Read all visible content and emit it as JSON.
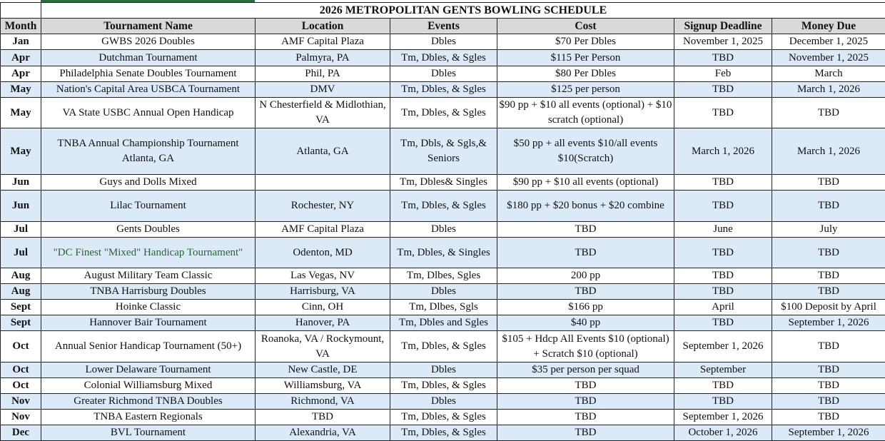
{
  "title": "2026 METROPOLITAN GENTS BOWLING SCHEDULE",
  "colors": {
    "row_alt": "#dce9f7",
    "header_bg": "#d9d9d9",
    "highlight_text": "#1f6b2a"
  },
  "columns": [
    "Month",
    "Tournament Name",
    "Location",
    "Events",
    "Cost",
    "Signup Deadline",
    "Money Due"
  ],
  "rows": [
    {
      "month": "Jan",
      "name": "GWBS 2026 Doubles",
      "location": "AMF Capital Plaza",
      "events": "Dbles",
      "cost": "$70 Per Dbles",
      "signup": "November 1, 2025",
      "due": "December 1, 2025"
    },
    {
      "month": "Apr",
      "name": "Dutchman Tournament",
      "location": "Palmyra, PA",
      "events": "Tm, Dbles, & Sgles",
      "cost": "$115 Per Person",
      "signup": "TBD",
      "due": "November 1, 2025"
    },
    {
      "month": "Apr",
      "name": "Philadelphia Senate Doubles Tournament",
      "location": "Phil, PA",
      "events": "Dbles",
      "cost": "$80 Per Dbles",
      "signup": "Feb",
      "due": "March"
    },
    {
      "month": "May",
      "name": "Nation's Capital Area USBCA Tournament",
      "location": "DMV",
      "events": "Tm, Dbles, & Sgles",
      "cost": "$125 per person",
      "signup": "TBD",
      "due": "March 1, 2026"
    },
    {
      "month": "May",
      "name": "VA State USBC Annual Open Handicap",
      "location": "N Chesterfield & Midlothian, VA",
      "events": "Tm, Dbles, & Sgles",
      "cost": "$90 pp + $10 all events (optional) + $10 scratch (optional)",
      "signup": "TBD",
      "due": "TBD"
    },
    {
      "month": "May",
      "name": "TNBA Annual Championship Tournament Atlanta, GA",
      "location": "Atlanta, GA",
      "events": "Tm, Dbls, & Sgls,& Seniors",
      "cost": "$50 pp + all events $10/all events $10(Scratch)",
      "signup": "March 1, 2026",
      "due": "March 1, 2026"
    },
    {
      "month": "Jun",
      "name": "Guys and Dolls Mixed",
      "location": "",
      "events": "Tm, Dbles& Singles",
      "cost": "$90 pp + $10 all events (optional)",
      "signup": "TBD",
      "due": "TBD"
    },
    {
      "month": "Jun",
      "name": "Lilac Tournament",
      "location": "Rochester, NY",
      "events": "Tm, Dbles, & Sgles",
      "cost": "$180 pp + $20 bonus + $20 combine",
      "signup": "TBD",
      "due": "TBD"
    },
    {
      "month": "Jul",
      "name": "Gents Doubles",
      "location": "AMF Capital Plaza",
      "events": "Dbles",
      "cost": "TBD",
      "signup": "June",
      "due": "July"
    },
    {
      "month": "Jul",
      "name": "\"DC Finest \"Mixed\" Handicap Tournament\"",
      "location": "Odenton, MD",
      "events": "Tm, Dbles, & Singles",
      "cost": "TBD",
      "signup": "TBD",
      "due": "TBD"
    },
    {
      "month": "Aug",
      "name": "August Military Team Classic",
      "location": "Las Vegas, NV",
      "events": "Tm, Dlbes, Sgles",
      "cost": "200 pp",
      "signup": "TBD",
      "due": "TBD"
    },
    {
      "month": "Aug",
      "name": "TNBA Harrisburg Doubles",
      "location": "Harrisburg, VA",
      "events": "Dbles",
      "cost": "TBD",
      "signup": "TBD",
      "due": "TBD"
    },
    {
      "month": "Sept",
      "name": "Hoinke Classic",
      "location": "Cinn, OH",
      "events": "Tm, Dlbes, Sgls",
      "cost": "$166 pp",
      "signup": "April",
      "due": "$100 Deposit by April"
    },
    {
      "month": "Sept",
      "name": "Hannover Bair Tournament",
      "location": "Hanover, PA",
      "events": "Tm, Dbles and Sgles",
      "cost": "$40 pp",
      "signup": "TBD",
      "due": "September 1, 2026"
    },
    {
      "month": "Oct",
      "name": "Annual Senior Handicap Tournament (50+)",
      "location": "Roanoka, VA / Rockymount, VA",
      "events": "Tm, Dbles, & Sgles",
      "cost": "$105 + Hdcp All Events $10 (optional) + Scratch $10 (optional)",
      "signup": "September 1, 2026",
      "due": "TBD"
    },
    {
      "month": "Oct",
      "name": "Lower Delaware Tournament",
      "location": "New Castle, DE",
      "events": "Dbles",
      "cost": "$35 per person per squad",
      "signup": "September",
      "due": "TBD"
    },
    {
      "month": "Oct",
      "name": "Colonial Williamsburg Mixed",
      "location": "Williamsburg, VA",
      "events": "Tm, Dbles, & Sgles",
      "cost": "TBD",
      "signup": "TBD",
      "due": "TBD"
    },
    {
      "month": "Nov",
      "name": "Greater Richmond TNBA Doubles",
      "location": "Richmond, VA",
      "events": "Dbles",
      "cost": "TBD",
      "signup": "TBD",
      "due": "TBD"
    },
    {
      "month": "Nov",
      "name": "TNBA Eastern Regionals",
      "location": "TBD",
      "events": "Tm, Dbles, & Sgles",
      "cost": "TBD",
      "signup": "September 1, 2026",
      "due": "TBD"
    },
    {
      "month": "Dec",
      "name": "BVL Tournament",
      "location": "Alexandria, VA",
      "events": "Tm, Dbles, & Sgles",
      "cost": "TBD",
      "signup": "October 1, 2026",
      "due": "September 1, 2026"
    }
  ]
}
